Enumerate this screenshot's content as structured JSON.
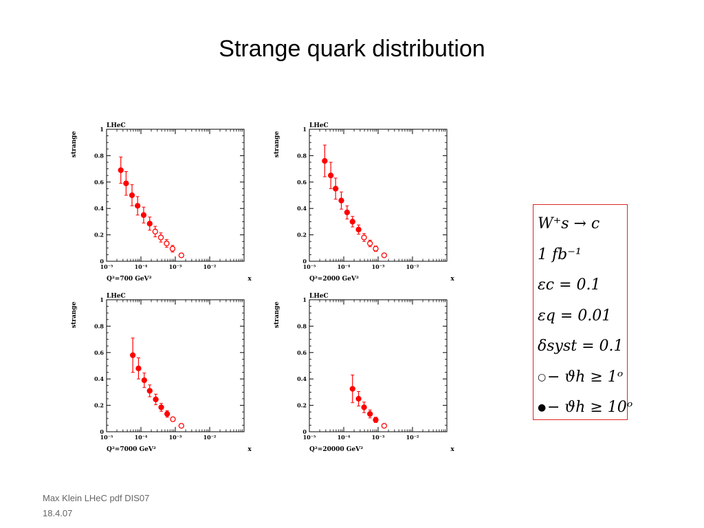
{
  "slide": {
    "title": "Strange quark distribution"
  },
  "legend": {
    "lines": [
      "W⁺s → c",
      "1 fb⁻¹",
      "εc = 0.1",
      "εq = 0.01",
      "δsyst = 0.1",
      "− ϑh ≥ 1ᵒ",
      "− ϑh ≥ 10ᵒ"
    ],
    "open_marker": "○",
    "filled_marker": "●"
  },
  "footer": {
    "line1": "Max Klein LHeC pdf DIS07",
    "line2": "18.4.07"
  },
  "colors": {
    "points": "#ff0000",
    "legend_border": "#dd2222"
  },
  "chart_data": [
    {
      "type": "scatter",
      "label": "LHeC",
      "ylabel": "strange",
      "xlabel": "x",
      "q2_label": "Q²=700 GeV²",
      "x_scale": "log",
      "xlim": [
        1e-05,
        0.1
      ],
      "ylim": [
        0,
        1
      ],
      "x_ticks": [
        "10⁻⁵",
        "10⁻⁴",
        "10⁻³",
        "10⁻²"
      ],
      "y_ticks": [
        "0",
        "0.2",
        "0.4",
        "0.6",
        "0.8",
        "1"
      ],
      "points": [
        {
          "x": 2.6e-05,
          "y": 0.69,
          "err": 0.1,
          "filled": true
        },
        {
          "x": 3.7e-05,
          "y": 0.59,
          "err": 0.09,
          "filled": true
        },
        {
          "x": 5.5e-05,
          "y": 0.5,
          "err": 0.08,
          "filled": true
        },
        {
          "x": 8e-05,
          "y": 0.42,
          "err": 0.07,
          "filled": true
        },
        {
          "x": 0.00012,
          "y": 0.35,
          "err": 0.06,
          "filled": true
        },
        {
          "x": 0.00018,
          "y": 0.285,
          "err": 0.05,
          "filled": true
        },
        {
          "x": 0.00026,
          "y": 0.225,
          "err": 0.04,
          "filled": false
        },
        {
          "x": 0.00038,
          "y": 0.18,
          "err": 0.035,
          "filled": false
        },
        {
          "x": 0.00056,
          "y": 0.135,
          "err": 0.03,
          "filled": false
        },
        {
          "x": 0.00083,
          "y": 0.095,
          "err": 0.025,
          "filled": false
        },
        {
          "x": 0.0015,
          "y": 0.045,
          "err": 0.01,
          "filled": false
        }
      ]
    },
    {
      "type": "scatter",
      "label": "LHeC",
      "ylabel": "strange",
      "xlabel": "x",
      "q2_label": "Q²=2000 GeV²",
      "x_scale": "log",
      "xlim": [
        1e-05,
        0.1
      ],
      "ylim": [
        0,
        1
      ],
      "x_ticks": [
        "10⁻⁵",
        "10⁻⁴",
        "10⁻³",
        "10⁻²"
      ],
      "y_ticks": [
        "0",
        "0.2",
        "0.4",
        "0.6",
        "0.8",
        "1"
      ],
      "points": [
        {
          "x": 2.8e-05,
          "y": 0.76,
          "err": 0.12,
          "filled": true
        },
        {
          "x": 4.2e-05,
          "y": 0.65,
          "err": 0.1,
          "filled": true
        },
        {
          "x": 5.8e-05,
          "y": 0.55,
          "err": 0.08,
          "filled": true
        },
        {
          "x": 8.5e-05,
          "y": 0.46,
          "err": 0.065,
          "filled": true
        },
        {
          "x": 0.000125,
          "y": 0.37,
          "err": 0.05,
          "filled": true
        },
        {
          "x": 0.00018,
          "y": 0.3,
          "err": 0.04,
          "filled": true
        },
        {
          "x": 0.00027,
          "y": 0.24,
          "err": 0.035,
          "filled": true
        },
        {
          "x": 0.00039,
          "y": 0.18,
          "err": 0.03,
          "filled": false
        },
        {
          "x": 0.00058,
          "y": 0.135,
          "err": 0.025,
          "filled": false
        },
        {
          "x": 0.00085,
          "y": 0.095,
          "err": 0.02,
          "filled": false
        },
        {
          "x": 0.0015,
          "y": 0.045,
          "err": 0.01,
          "filled": false
        }
      ]
    },
    {
      "type": "scatter",
      "label": "LHeC",
      "ylabel": "strange",
      "xlabel": "x",
      "q2_label": "Q²=7000 GeV²",
      "x_scale": "log",
      "xlim": [
        1e-05,
        0.1
      ],
      "ylim": [
        0,
        1
      ],
      "x_ticks": [
        "10⁻⁵",
        "10⁻⁴",
        "10⁻³",
        "10⁻²"
      ],
      "y_ticks": [
        "0",
        "0.2",
        "0.4",
        "0.6",
        "0.8",
        "1"
      ],
      "points": [
        {
          "x": 5.8e-05,
          "y": 0.58,
          "err": 0.13,
          "filled": true
        },
        {
          "x": 8.5e-05,
          "y": 0.48,
          "err": 0.08,
          "filled": true
        },
        {
          "x": 0.000125,
          "y": 0.39,
          "err": 0.055,
          "filled": true
        },
        {
          "x": 0.00018,
          "y": 0.31,
          "err": 0.045,
          "filled": true
        },
        {
          "x": 0.00027,
          "y": 0.245,
          "err": 0.04,
          "filled": true
        },
        {
          "x": 0.00039,
          "y": 0.185,
          "err": 0.03,
          "filled": true
        },
        {
          "x": 0.00058,
          "y": 0.135,
          "err": 0.025,
          "filled": true
        },
        {
          "x": 0.00085,
          "y": 0.095,
          "err": 0.015,
          "filled": false
        },
        {
          "x": 0.0015,
          "y": 0.045,
          "err": 0.01,
          "filled": false
        }
      ]
    },
    {
      "type": "scatter",
      "label": "LHeC",
      "ylabel": "strange",
      "xlabel": "x",
      "q2_label": "Q²=20000 GeV²",
      "x_scale": "log",
      "xlim": [
        1e-05,
        0.1
      ],
      "ylim": [
        0,
        1
      ],
      "x_ticks": [
        "10⁻⁵",
        "10⁻⁴",
        "10⁻³",
        "10⁻²"
      ],
      "y_ticks": [
        "0",
        "0.2",
        "0.4",
        "0.6",
        "0.8",
        "1"
      ],
      "points": [
        {
          "x": 0.00018,
          "y": 0.325,
          "err": 0.105,
          "filled": true
        },
        {
          "x": 0.00027,
          "y": 0.25,
          "err": 0.055,
          "filled": true
        },
        {
          "x": 0.00039,
          "y": 0.185,
          "err": 0.04,
          "filled": true
        },
        {
          "x": 0.00058,
          "y": 0.135,
          "err": 0.03,
          "filled": true
        },
        {
          "x": 0.00085,
          "y": 0.09,
          "err": 0.02,
          "filled": true
        },
        {
          "x": 0.0015,
          "y": 0.045,
          "err": 0.01,
          "filled": false
        }
      ]
    }
  ]
}
